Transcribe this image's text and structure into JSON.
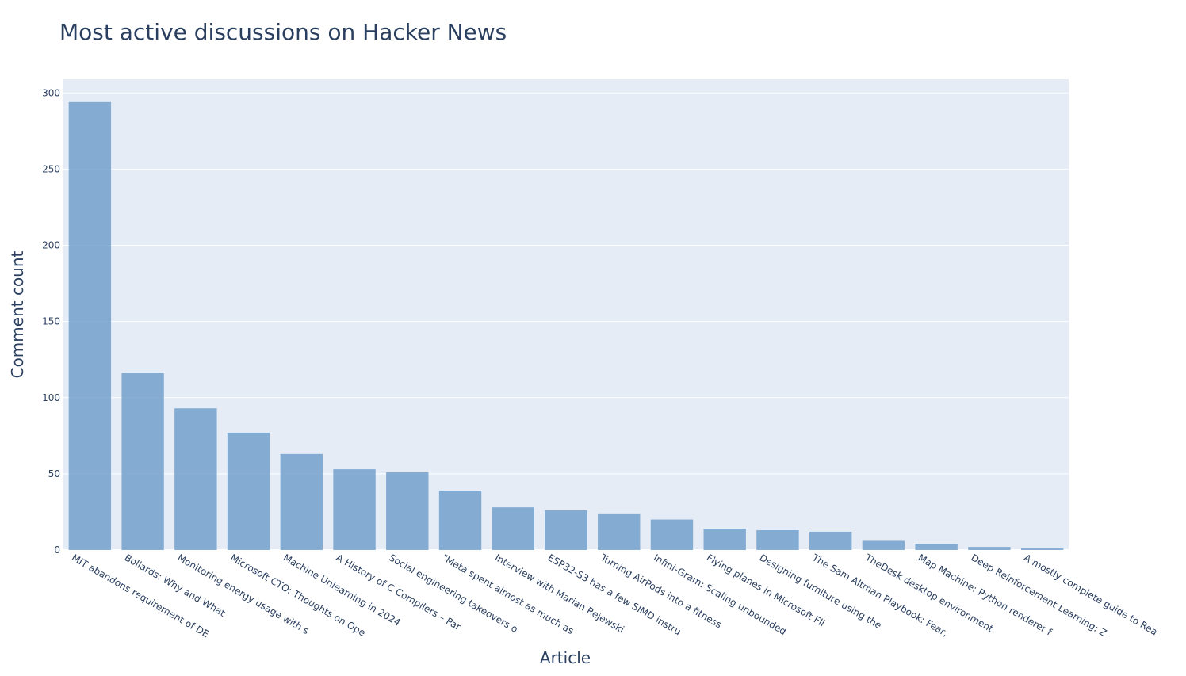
{
  "chart_data": {
    "type": "bar",
    "title": "Most active discussions on Hacker News",
    "xlabel": "Article",
    "ylabel": "Comment count",
    "ylim": [
      0,
      309
    ],
    "yticks": [
      0,
      50,
      100,
      150,
      200,
      250,
      300
    ],
    "grid": true,
    "colors": {
      "bar": "#6c9bc8",
      "plot_bg": "#e5ecf6",
      "text": "#2a3f5f"
    },
    "categories": [
      "MIT abandons requirement of DE",
      "Bollards: Why and What",
      "Monitoring energy usage with s",
      "Microsoft CTO: Thoughts on Ope",
      "Machine Unlearning in 2024",
      "A History of C Compilers – Par",
      "Social engineering takeovers o",
      "\"Meta spent almost as much as",
      "Interview with Marian Rejewski",
      "ESP32-S3 has a few SIMD instru",
      "Turning AirPods into a fitness",
      "Infini-Gram: Scaling unbounded",
      "Flying planes in Microsoft Fli",
      "Designing furniture using the",
      "The Sam Altman Playbook: Fear,",
      "TheDesk desktop environment",
      "Map Machine: Python renderer f",
      "Deep Reinforcement Learning: Z",
      "A mostly complete guide to Rea"
    ],
    "values": [
      294,
      116,
      93,
      77,
      63,
      53,
      51,
      39,
      28,
      26,
      24,
      20,
      14,
      13,
      12,
      6,
      4,
      2,
      1
    ]
  }
}
